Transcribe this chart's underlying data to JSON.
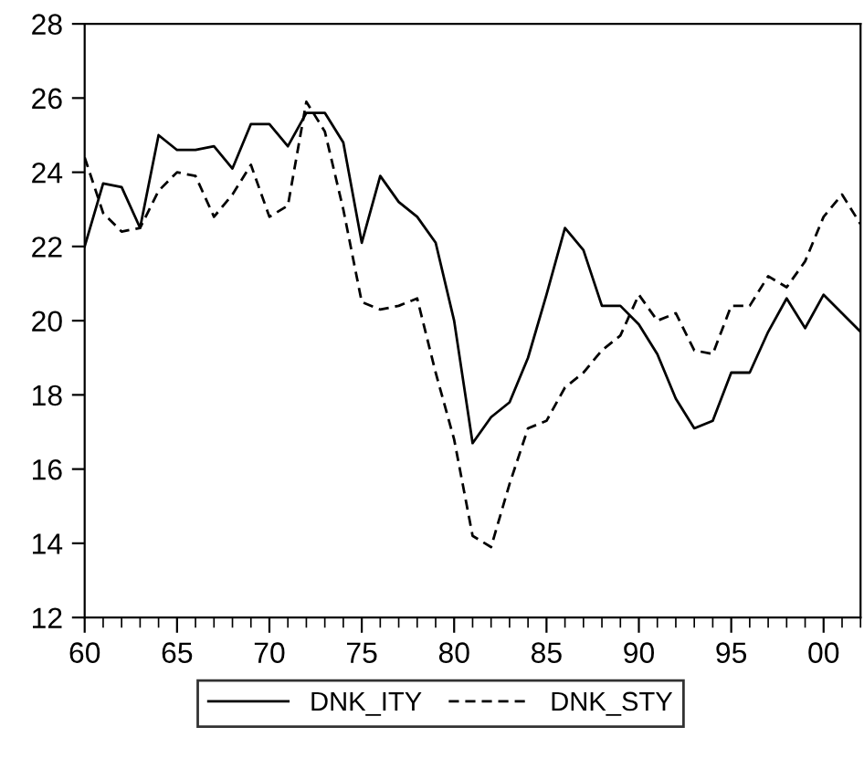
{
  "chart_data": {
    "type": "line",
    "x": [
      1960,
      1961,
      1962,
      1963,
      1964,
      1965,
      1966,
      1967,
      1968,
      1969,
      1970,
      1971,
      1972,
      1973,
      1974,
      1975,
      1976,
      1977,
      1978,
      1979,
      1980,
      1981,
      1982,
      1983,
      1984,
      1985,
      1986,
      1987,
      1988,
      1989,
      1990,
      1991,
      1992,
      1993,
      1994,
      1995,
      1996,
      1997,
      1998,
      1999,
      2000,
      2001,
      2002
    ],
    "series": [
      {
        "name": "DNK_ITY",
        "color": "#000000",
        "line_style": "solid",
        "values": [
          22.0,
          23.7,
          23.6,
          22.5,
          25.0,
          24.6,
          24.6,
          24.7,
          24.1,
          25.3,
          25.3,
          24.7,
          25.6,
          25.6,
          24.8,
          22.1,
          23.9,
          23.2,
          22.8,
          22.1,
          20.0,
          16.7,
          17.4,
          17.8,
          19.0,
          20.7,
          22.5,
          21.9,
          20.4,
          20.4,
          19.9,
          19.1,
          17.9,
          17.1,
          17.3,
          18.6,
          18.6,
          19.7,
          20.6,
          19.8,
          20.7,
          20.2,
          19.7
        ]
      },
      {
        "name": "DNK_STY",
        "color": "#000000",
        "line_style": "dashed",
        "values": [
          24.4,
          22.9,
          22.4,
          22.5,
          23.5,
          24.0,
          23.9,
          22.8,
          23.4,
          24.2,
          22.8,
          23.1,
          25.9,
          25.1,
          23.0,
          20.5,
          20.3,
          20.4,
          20.6,
          18.6,
          16.8,
          14.2,
          13.9,
          15.6,
          17.1,
          17.3,
          18.2,
          18.6,
          19.2,
          19.6,
          20.7,
          20.0,
          20.2,
          19.2,
          19.1,
          20.4,
          20.4,
          21.2,
          20.9,
          21.6,
          22.8,
          23.4,
          22.6
        ]
      }
    ],
    "xlim": [
      1960,
      2002
    ],
    "xticks": [
      {
        "value": 1960,
        "label": "60"
      },
      {
        "value": 1965,
        "label": "65"
      },
      {
        "value": 1970,
        "label": "70"
      },
      {
        "value": 1975,
        "label": "75"
      },
      {
        "value": 1980,
        "label": "80"
      },
      {
        "value": 1985,
        "label": "85"
      },
      {
        "value": 1990,
        "label": "90"
      },
      {
        "value": 1995,
        "label": "95"
      },
      {
        "value": 2000,
        "label": "00"
      }
    ],
    "ylim": [
      12,
      28
    ],
    "yticks": [
      12,
      14,
      16,
      18,
      20,
      22,
      24,
      26,
      28
    ],
    "grid": false,
    "legend": "bottom"
  }
}
